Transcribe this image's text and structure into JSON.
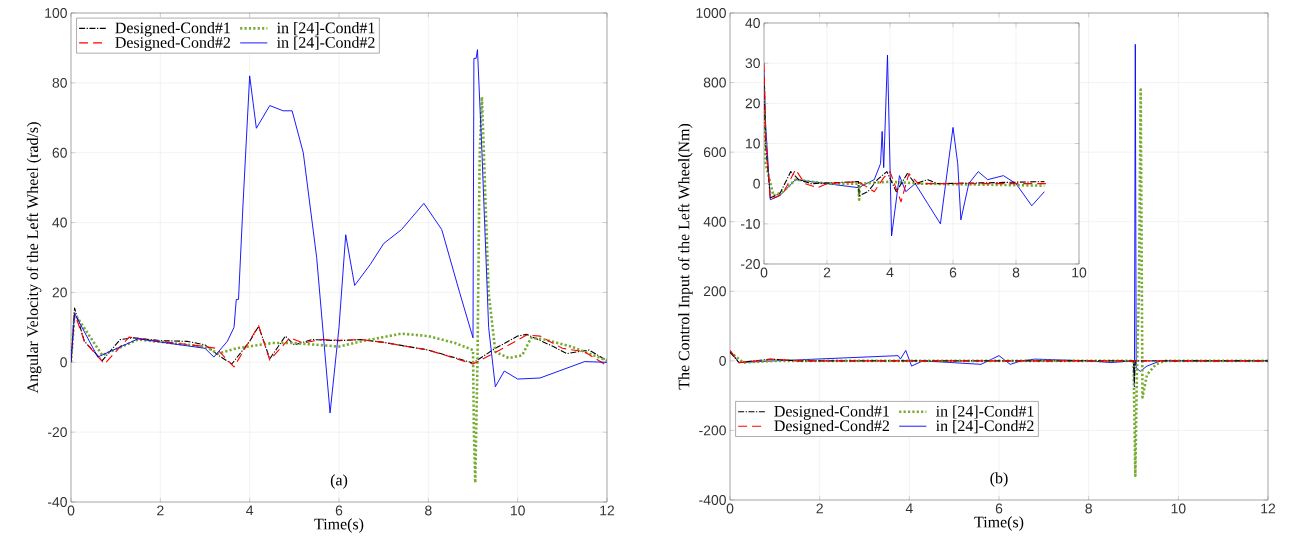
{
  "chart_data": [
    {
      "type": "line",
      "xlabel": "Time(s)",
      "ylabel": "Angular Velocity of the Left Wheel (rad/s)",
      "xlim": [
        0,
        12
      ],
      "ylim": [
        -40,
        100
      ],
      "xticks": [
        0,
        2,
        4,
        6,
        8,
        10,
        12
      ],
      "yticks": [
        -40,
        -20,
        0,
        20,
        40,
        60,
        80,
        100
      ],
      "grid": true,
      "legend": "top left",
      "annotations": [
        "(a)"
      ],
      "series": [
        {
          "name": "Designed-Cond#1",
          "color": "#000000",
          "line_style": "dashdot",
          "x": [
            0,
            0.08,
            0.3,
            0.7,
            1.1,
            1.4,
            2.0,
            2.6,
            3.0,
            3.3,
            3.6,
            4.0,
            4.2,
            4.45,
            4.8,
            5.0,
            5.4,
            6.0,
            6.5,
            7.0,
            8.0,
            9.0,
            9.5,
            10.0,
            10.2,
            10.8,
            11.1,
            11.6,
            12
          ],
          "values": [
            0,
            15.5,
            6,
            0.5,
            6.5,
            7,
            6.2,
            6,
            5,
            2,
            -0.5,
            6,
            10.3,
            1,
            7.5,
            5,
            6.5,
            6.2,
            6.5,
            5.7,
            3.5,
            -0.2,
            4,
            7.5,
            8,
            4.5,
            2.5,
            3.5,
            0.5
          ]
        },
        {
          "name": "in [24]-Cond#1",
          "color": "#77ac30",
          "line_style": "dotted",
          "x": [
            0,
            0.08,
            0.7,
            1.5,
            3.0,
            3.3,
            3.7,
            4.5,
            5.0,
            5.5,
            6.0,
            6.5,
            7.4,
            8.0,
            8.6,
            9.0,
            9.02,
            9.05,
            9.1,
            9.15,
            9.2,
            9.35,
            9.5,
            9.8,
            10.1,
            10.3,
            10.6,
            11.2,
            12
          ],
          "values": [
            0,
            14,
            2,
            6.5,
            4.5,
            2.5,
            4,
            5.5,
            5.5,
            5,
            4.5,
            6,
            8.2,
            7.5,
            5.5,
            3.5,
            -20,
            -34.5,
            0,
            60,
            76,
            20,
            3,
            1.2,
            2,
            7,
            6.5,
            4.5,
            0.5
          ]
        },
        {
          "name": "Designed-Cond#2",
          "color": "#ff0000",
          "line_style": "dashed",
          "x": [
            0,
            0.08,
            0.3,
            0.75,
            1.3,
            2.0,
            3.0,
            3.25,
            3.65,
            4.2,
            4.45,
            4.9,
            5.2,
            5.6,
            6.0,
            6.5,
            7.0,
            8.0,
            9.0,
            9.6,
            10.2,
            10.5,
            11.0,
            11.5,
            12
          ],
          "values": [
            0,
            14,
            6,
            -0.5,
            7.2,
            6,
            4.5,
            4,
            -1.3,
            10.5,
            0.6,
            7,
            5.5,
            6.5,
            6.3,
            6.5,
            5.7,
            3.5,
            -0.5,
            3.5,
            7.8,
            7.5,
            4,
            3,
            -1
          ]
        },
        {
          "name": "in [24]-Cond#2",
          "color": "#0000ff",
          "line_style": "solid",
          "x": [
            0,
            0.08,
            0.6,
            1.5,
            3.0,
            3.2,
            3.5,
            3.65,
            3.7,
            3.75,
            3.85,
            4.0,
            4.15,
            4.45,
            4.75,
            4.95,
            5.2,
            5.5,
            5.8,
            6.0,
            6.15,
            6.35,
            6.7,
            7.0,
            7.4,
            7.9,
            8.3,
            8.7,
            9.0,
            9.02,
            9.07,
            9.1,
            9.2,
            9.35,
            9.5,
            9.7,
            10.0,
            10.5,
            11.5,
            12
          ],
          "values": [
            0,
            14,
            1.5,
            6.7,
            4,
            1.5,
            6,
            10,
            18,
            18,
            45,
            82,
            67,
            73.5,
            72,
            72,
            60,
            30,
            -14.5,
            10,
            36.5,
            22,
            28,
            34,
            38,
            45.5,
            38,
            20,
            7,
            87,
            87,
            89.5,
            60,
            10,
            -7,
            -2.5,
            -4.8,
            -4.5,
            0.2,
            0
          ]
        }
      ]
    },
    {
      "type": "line",
      "xlabel": "Time(s)",
      "ylabel": "The Control Input of the Left Wheel(Nm)",
      "xlim": [
        0,
        12
      ],
      "ylim": [
        -400,
        1000
      ],
      "xticks": [
        0,
        2,
        4,
        6,
        8,
        10,
        12
      ],
      "yticks": [
        -400,
        -200,
        0,
        200,
        400,
        600,
        800,
        1000
      ],
      "grid": true,
      "legend": "bottom left",
      "annotations": [
        "(b)"
      ],
      "series": [
        {
          "name": "Designed-Cond#1",
          "color": "#000000",
          "line_style": "dashdot",
          "x": [
            0,
            0.2,
            0.9,
            1.5,
            9.0,
            9.02,
            9.04,
            12
          ],
          "values": [
            25,
            -5,
            5,
            0,
            0,
            -60,
            0,
            0
          ]
        },
        {
          "name": "in [24]-Cond#1",
          "color": "#77ac30",
          "line_style": "dotted",
          "x": [
            0,
            0.3,
            1.0,
            9.0,
            9.04,
            9.08,
            9.12,
            9.16,
            9.2,
            9.3,
            9.5,
            9.7,
            12
          ],
          "values": [
            25,
            -5,
            0,
            0,
            -330,
            0,
            200,
            780,
            -105,
            -40,
            -10,
            0,
            0
          ]
        },
        {
          "name": "Designed-Cond#2",
          "color": "#ff0000",
          "line_style": "dashed",
          "x": [
            0,
            0.2,
            1.0,
            1.5,
            12
          ],
          "values": [
            30,
            -5,
            5,
            0,
            0
          ]
        },
        {
          "name": "in [24]-Cond#2",
          "color": "#0000ff",
          "line_style": "solid",
          "x": [
            0,
            0.2,
            1.0,
            3.75,
            3.8,
            3.92,
            4.05,
            4.3,
            5.6,
            6.0,
            6.25,
            6.5,
            6.8,
            8.0,
            8.5,
            9.0,
            9.02,
            9.04,
            9.06,
            9.15,
            9.3,
            9.6,
            12
          ],
          "values": [
            30,
            -5,
            0,
            15,
            5,
            30,
            -15,
            0,
            -10,
            15,
            -10,
            0,
            5,
            0,
            -5,
            0,
            -75,
            910,
            -20,
            -30,
            -15,
            0,
            0
          ]
        }
      ]
    },
    {
      "type": "line",
      "xlim": [
        0,
        10
      ],
      "ylim": [
        -20,
        40
      ],
      "xticks": [
        0,
        2,
        4,
        6,
        8,
        10
      ],
      "yticks": [
        -20,
        -10,
        0,
        10,
        20,
        30,
        40
      ],
      "grid": true,
      "series": [
        {
          "color": "#000000",
          "line_style": "dashdot",
          "x": [
            0,
            0.05,
            0.2,
            0.5,
            0.85,
            1.1,
            1.5,
            3.0,
            3.02,
            3.3,
            3.6,
            3.9,
            4.2,
            4.55,
            4.8,
            5.2,
            5.5,
            8.9
          ],
          "values": [
            25,
            10,
            -3.5,
            -2.5,
            3,
            1,
            0,
            0.5,
            -3,
            -2,
            1,
            3,
            -2,
            2.5,
            0,
            1,
            0,
            0.5
          ]
        },
        {
          "color": "#77ac30",
          "line_style": "dotted",
          "x": [
            0,
            0.05,
            0.3,
            0.6,
            1.0,
            2.0,
            3.0,
            3.02,
            3.05,
            4.0,
            5.0,
            8.9
          ],
          "values": [
            24,
            5,
            -3,
            -2,
            1,
            0,
            0,
            -4,
            0,
            0.5,
            0,
            -0.5
          ]
        },
        {
          "color": "#ff0000",
          "line_style": "dashed",
          "x": [
            0,
            0.05,
            0.2,
            0.6,
            1.0,
            1.3,
            1.7,
            2.0,
            3.0,
            3.5,
            3.8,
            4.0,
            4.35,
            4.6,
            4.9,
            6.5,
            8.95
          ],
          "values": [
            30,
            12,
            -4,
            -2.5,
            3.5,
            0,
            -1,
            0,
            0.5,
            -2,
            1.5,
            3,
            -4.5,
            2.5,
            0,
            0,
            0
          ]
        },
        {
          "color": "#0000ff",
          "line_style": "solid",
          "x": [
            0,
            0.05,
            0.2,
            0.5,
            1.0,
            2.0,
            3.0,
            3.5,
            3.7,
            3.75,
            3.8,
            3.92,
            4.05,
            4.3,
            4.5,
            4.8,
            5.2,
            5.6,
            6.0,
            6.15,
            6.25,
            6.5,
            6.8,
            7.1,
            7.6,
            8.0,
            8.5,
            8.9
          ],
          "values": [
            28,
            15,
            -4,
            -3,
            1,
            0,
            -1,
            1,
            5,
            13,
            4,
            32,
            -13,
            2,
            -2,
            0,
            -5,
            -10,
            14,
            5,
            -9,
            0,
            3,
            1,
            2,
            0,
            -5.5,
            -2
          ]
        }
      ]
    }
  ]
}
